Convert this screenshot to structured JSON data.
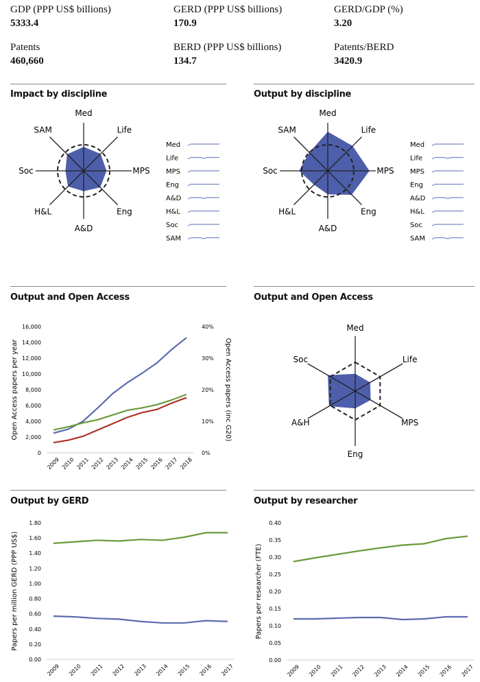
{
  "stats": [
    {
      "label": "GDP (PPP US$ billions)",
      "value": "5333.4"
    },
    {
      "label": "GERD (PPP US$ billions)",
      "value": "170.9"
    },
    {
      "label": "GERD/GDP (%)",
      "value": "3.20"
    },
    {
      "label": "Patents",
      "value": "460,660"
    },
    {
      "label": "BERD (PPP US$ billions)",
      "value": "134.7"
    },
    {
      "label": "Patents/BERD",
      "value": "3420.9"
    }
  ],
  "sections": {
    "impact": "Impact by discipline",
    "output": "Output by discipline",
    "oa1": "Output and Open Access",
    "oa2": "Output and Open Access",
    "gerd": "Output by GERD",
    "researcher": "Output by researcher"
  },
  "colors": {
    "fill": "#4d5eaa",
    "blue": "#5b6bb0",
    "green": "#6a9a3a",
    "red": "#b03028",
    "spark": "#7b88c4"
  },
  "chart_data": [
    {
      "type": "radar",
      "id": "impact",
      "axes": [
        "Med",
        "Life",
        "MPS",
        "Eng",
        "A&D",
        "H&L",
        "Soc",
        "SAM"
      ],
      "values": [
        0.92,
        0.92,
        0.88,
        0.9,
        0.78,
        0.85,
        0.7,
        0.9
      ],
      "reference": 1,
      "sparklines": {
        "labels": [
          "Med",
          "Life",
          "MPS",
          "Eng",
          "A&D",
          "H&L",
          "Soc",
          "SAM"
        ]
      }
    },
    {
      "type": "radar",
      "id": "output",
      "axes": [
        "Med",
        "Life",
        "MPS",
        "Eng",
        "A&D",
        "H&L",
        "Soc",
        "SAM"
      ],
      "values": [
        1.5,
        1.35,
        1.6,
        1.3,
        0.9,
        0.75,
        1.1,
        1.0
      ],
      "reference": 1,
      "sparklines": {
        "labels": [
          "Med",
          "Life",
          "MPS",
          "Eng",
          "A&D",
          "H&L",
          "Soc",
          "SAM"
        ]
      }
    },
    {
      "type": "line",
      "id": "oa",
      "x": [
        2009,
        2010,
        2011,
        2012,
        2013,
        2014,
        2015,
        2016,
        2017,
        2018
      ],
      "ylabel": "Open Access papers per year",
      "y2label": "Open Access papers (inc G20)",
      "ylim": [
        0,
        16000
      ],
      "yticks": [
        "0",
        "2,000",
        "4,000",
        "6,000",
        "8,000",
        "10,000",
        "12,000",
        "14,000",
        "16,000"
      ],
      "y2ticks": [
        "0%",
        "10%",
        "20%",
        "30%",
        "40%"
      ],
      "series": [
        {
          "color": "#5b6bb0",
          "values": [
            2500,
            3000,
            4000,
            5700,
            7500,
            8900,
            10100,
            11400,
            13100,
            14600
          ]
        },
        {
          "color": "#6a9a3a",
          "values": [
            2900,
            3300,
            3800,
            4200,
            4800,
            5400,
            5700,
            6100,
            6700,
            7400
          ]
        },
        {
          "color": "#b03028",
          "values": [
            1300,
            1600,
            2100,
            2900,
            3700,
            4500,
            5100,
            5500,
            6300,
            7000
          ]
        }
      ]
    },
    {
      "type": "radar",
      "id": "oa-radar",
      "axes": [
        "Med",
        "Life",
        "MPS",
        "Eng",
        "A&H",
        "Soc"
      ],
      "values": [
        0.6,
        0.6,
        0.62,
        0.6,
        1.05,
        1.1
      ],
      "reference": 1
    },
    {
      "type": "line",
      "id": "gerd",
      "x": [
        2009,
        2010,
        2011,
        2012,
        2013,
        2014,
        2015,
        2016,
        2017
      ],
      "ylabel": "Papers per million GERD (PPP US$)",
      "ylim": [
        0,
        1.8
      ],
      "yticks": [
        "0.00",
        "0.20",
        "0.40",
        "0.60",
        "0.80",
        "1.00",
        "1.20",
        "1.40",
        "1.60",
        "1.80"
      ],
      "series": [
        {
          "color": "#6a9a3a",
          "values": [
            1.53,
            1.55,
            1.57,
            1.56,
            1.58,
            1.57,
            1.61,
            1.67,
            1.67
          ]
        },
        {
          "color": "#5b6bb0",
          "values": [
            0.57,
            0.56,
            0.54,
            0.53,
            0.5,
            0.48,
            0.48,
            0.51,
            0.5
          ]
        }
      ]
    },
    {
      "type": "line",
      "id": "researcher",
      "x": [
        2009,
        2010,
        2011,
        2012,
        2013,
        2014,
        2015,
        2016,
        2017
      ],
      "ylabel": "Papers per researcher (FTE)",
      "ylim": [
        0,
        0.4
      ],
      "yticks": [
        "0.00",
        "0.05",
        "0.10",
        "0.15",
        "0.20",
        "0.25",
        "0.30",
        "0.35",
        "0.40"
      ],
      "series": [
        {
          "color": "#6a9a3a",
          "values": [
            0.287,
            0.298,
            0.308,
            0.318,
            0.327,
            0.335,
            0.339,
            0.354,
            0.361
          ]
        },
        {
          "color": "#5b6bb0",
          "values": [
            0.12,
            0.12,
            0.122,
            0.124,
            0.124,
            0.118,
            0.12,
            0.126,
            0.126
          ]
        }
      ]
    }
  ]
}
